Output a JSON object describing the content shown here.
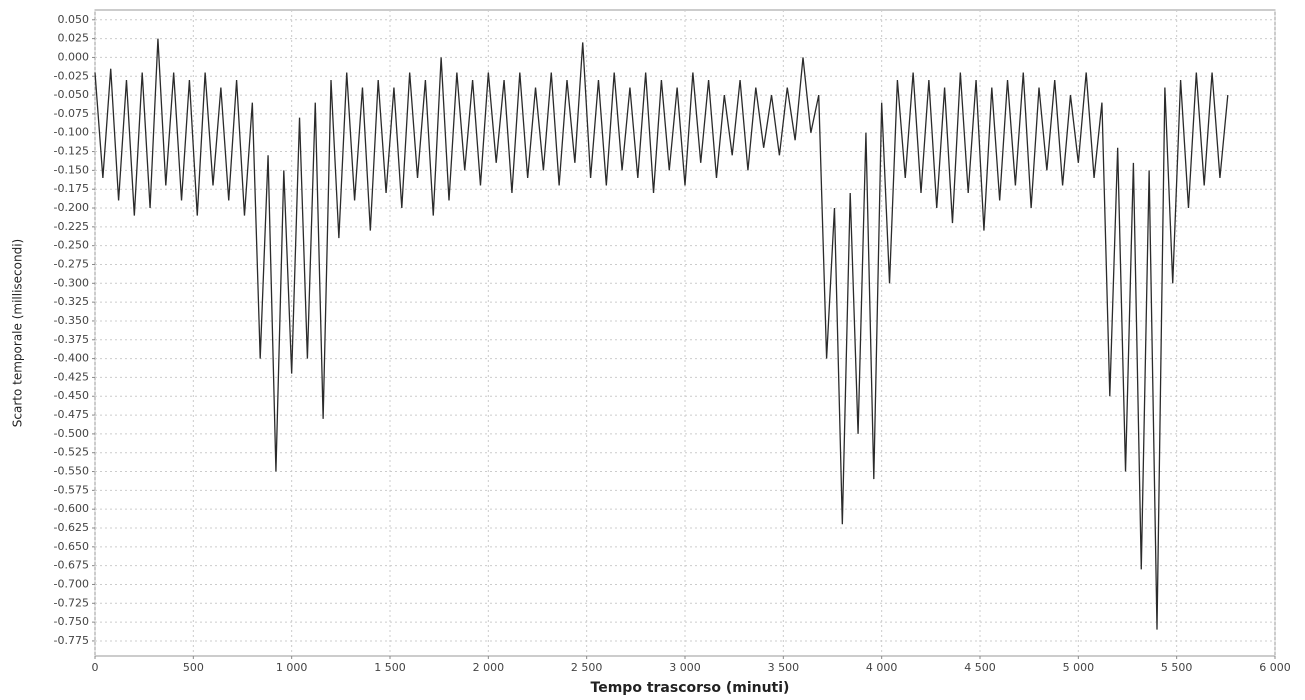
{
  "chart_data": {
    "type": "line",
    "xlabel": "Tempo trascorso (minuti)",
    "ylabel": "Scarto temporale (millisecondi)",
    "grid": true,
    "xlim": [
      0,
      6000
    ],
    "ylim": [
      -0.795,
      0.063
    ],
    "xticks": [
      0,
      500,
      {
        "value": 1000,
        "label": "1 000"
      },
      {
        "value": 1500,
        "label": "1 500"
      },
      {
        "value": 2000,
        "label": "2 000"
      },
      {
        "value": 2500,
        "label": "2 500"
      },
      {
        "value": 3000,
        "label": "3 000"
      },
      {
        "value": 3500,
        "label": "3 500"
      },
      {
        "value": 4000,
        "label": "4 000"
      },
      {
        "value": 4500,
        "label": "4 500"
      },
      {
        "value": 5000,
        "label": "5 000"
      },
      {
        "value": 5500,
        "label": "5 500"
      },
      {
        "value": 6000,
        "label": "6 000"
      }
    ],
    "yticks": [
      {
        "value": 0.05,
        "label": "0.050"
      },
      {
        "value": 0.025,
        "label": "0.025"
      },
      {
        "value": 0,
        "label": "0.000"
      },
      {
        "value": -0.025,
        "label": "-0.025"
      },
      {
        "value": -0.05,
        "label": "-0.050"
      },
      {
        "value": -0.075,
        "label": "-0.075"
      },
      {
        "value": -0.1,
        "label": "-0.100"
      },
      {
        "value": -0.125,
        "label": "-0.125"
      },
      {
        "value": -0.15,
        "label": "-0.150"
      },
      {
        "value": -0.175,
        "label": "-0.175"
      },
      {
        "value": -0.2,
        "label": "-0.200"
      },
      {
        "value": -0.225,
        "label": "-0.225"
      },
      {
        "value": -0.25,
        "label": "-0.250"
      },
      {
        "value": -0.275,
        "label": "-0.275"
      },
      {
        "value": -0.3,
        "label": "-0.300"
      },
      {
        "value": -0.325,
        "label": "-0.325"
      },
      {
        "value": -0.35,
        "label": "-0.350"
      },
      {
        "value": -0.375,
        "label": "-0.375"
      },
      {
        "value": -0.4,
        "label": "-0.400"
      },
      {
        "value": -0.425,
        "label": "-0.425"
      },
      {
        "value": -0.45,
        "label": "-0.450"
      },
      {
        "value": -0.475,
        "label": "-0.475"
      },
      {
        "value": -0.5,
        "label": "-0.500"
      },
      {
        "value": -0.525,
        "label": "-0.525"
      },
      {
        "value": -0.55,
        "label": "-0.550"
      },
      {
        "value": -0.575,
        "label": "-0.575"
      },
      {
        "value": -0.6,
        "label": "-0.600"
      },
      {
        "value": -0.625,
        "label": "-0.625"
      },
      {
        "value": -0.65,
        "label": "-0.650"
      },
      {
        "value": -0.675,
        "label": "-0.675"
      },
      {
        "value": -0.7,
        "label": "-0.700"
      },
      {
        "value": -0.725,
        "label": "-0.725"
      },
      {
        "value": -0.75,
        "label": "-0.750"
      },
      {
        "value": -0.775,
        "label": "-0.775"
      }
    ],
    "x": [
      0,
      40,
      80,
      120,
      160,
      200,
      240,
      280,
      320,
      360,
      400,
      440,
      480,
      520,
      560,
      600,
      640,
      680,
      720,
      760,
      800,
      840,
      880,
      920,
      960,
      1000,
      1040,
      1080,
      1120,
      1160,
      1200,
      1240,
      1280,
      1320,
      1360,
      1400,
      1440,
      1480,
      1520,
      1560,
      1600,
      1640,
      1680,
      1720,
      1760,
      1800,
      1840,
      1880,
      1920,
      1960,
      2000,
      2040,
      2080,
      2120,
      2160,
      2200,
      2240,
      2280,
      2320,
      2360,
      2400,
      2440,
      2480,
      2520,
      2560,
      2600,
      2640,
      2680,
      2720,
      2760,
      2800,
      2840,
      2880,
      2920,
      2960,
      3000,
      3040,
      3080,
      3120,
      3160,
      3200,
      3240,
      3280,
      3320,
      3360,
      3400,
      3440,
      3480,
      3520,
      3560,
      3600,
      3640,
      3680,
      3720,
      3760,
      3800,
      3840,
      3880,
      3920,
      3960,
      4000,
      4040,
      4080,
      4120,
      4160,
      4200,
      4240,
      4280,
      4320,
      4360,
      4400,
      4440,
      4480,
      4520,
      4560,
      4600,
      4640,
      4680,
      4720,
      4760,
      4800,
      4840,
      4880,
      4920,
      4960,
      5000,
      5040,
      5080,
      5120,
      5160,
      5200,
      5240,
      5280,
      5320,
      5360,
      5400,
      5440,
      5480,
      5520,
      5560,
      5600,
      5640,
      5680,
      5720,
      5760
    ],
    "series": [
      {
        "color": "#2b2b2b",
        "values": [
          -0.02,
          -0.16,
          -0.015,
          -0.19,
          -0.03,
          -0.21,
          -0.02,
          -0.2,
          0.025,
          -0.17,
          -0.02,
          -0.19,
          -0.03,
          -0.21,
          -0.02,
          -0.17,
          -0.04,
          -0.19,
          -0.03,
          -0.21,
          -0.06,
          -0.4,
          -0.13,
          -0.55,
          -0.15,
          -0.42,
          -0.08,
          -0.4,
          -0.06,
          -0.48,
          -0.03,
          -0.24,
          -0.02,
          -0.19,
          -0.04,
          -0.23,
          -0.03,
          -0.18,
          -0.04,
          -0.2,
          -0.02,
          -0.16,
          -0.03,
          -0.21,
          0,
          -0.19,
          -0.02,
          -0.15,
          -0.03,
          -0.17,
          -0.02,
          -0.14,
          -0.03,
          -0.18,
          -0.02,
          -0.16,
          -0.04,
          -0.15,
          -0.02,
          -0.17,
          -0.03,
          -0.14,
          0.02,
          -0.16,
          -0.03,
          -0.17,
          -0.02,
          -0.15,
          -0.04,
          -0.16,
          -0.02,
          -0.18,
          -0.03,
          -0.15,
          -0.04,
          -0.17,
          -0.02,
          -0.14,
          -0.03,
          -0.16,
          -0.05,
          -0.13,
          -0.03,
          -0.15,
          -0.04,
          -0.12,
          -0.05,
          -0.13,
          -0.04,
          -0.11,
          0,
          -0.1,
          -0.05,
          -0.4,
          -0.2,
          -0.62,
          -0.18,
          -0.5,
          -0.1,
          -0.56,
          -0.06,
          -0.3,
          -0.03,
          -0.16,
          -0.02,
          -0.18,
          -0.03,
          -0.2,
          -0.04,
          -0.22,
          -0.02,
          -0.18,
          -0.03,
          -0.23,
          -0.04,
          -0.19,
          -0.03,
          -0.17,
          -0.02,
          -0.2,
          -0.04,
          -0.15,
          -0.03,
          -0.17,
          -0.05,
          -0.14,
          -0.02,
          -0.16,
          -0.06,
          -0.45,
          -0.12,
          -0.55,
          -0.14,
          -0.68,
          -0.15,
          -0.76,
          -0.04,
          -0.3,
          -0.03,
          -0.2,
          -0.02,
          -0.17,
          -0.02,
          -0.16,
          -0.05
        ]
      }
    ]
  }
}
